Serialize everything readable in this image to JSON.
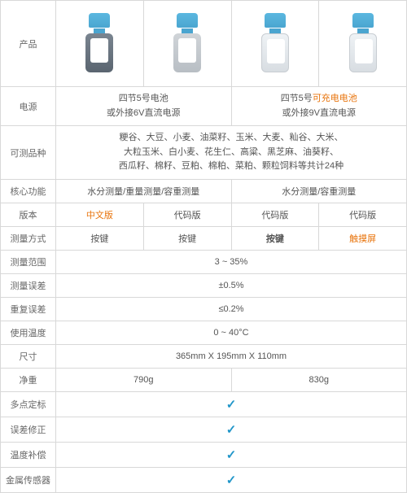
{
  "labels": {
    "product": "产品",
    "power": "电源",
    "species": "可测品种",
    "core": "核心功能",
    "version": "版本",
    "method": "测量方式",
    "range": "测量范围",
    "err": "测量误差",
    "repeat": "重复误差",
    "temp": "使用温度",
    "size": "尺寸",
    "weight": "净重",
    "multi": "多点定标",
    "errcor": "误差修正",
    "tempcomp": "温度补偿",
    "sensor": "金属传感器"
  },
  "power": {
    "left": "四节5号电池\n或外接6V直流电源",
    "right_a": "四节5号",
    "right_b": "可充电电池",
    "right_c": "\n或外接9V直流电源"
  },
  "species": "粳谷、大豆、小麦、油菜籽、玉米、大麦、籼谷、大米、\n大粒玉米、白小麦、花生仁、高粱、黑芝麻、油葵籽、\n西瓜籽、棉籽、豆粕、棉粕、菜粕、颗粒饲料等共计24种",
  "core": {
    "left": "水分测量/重量测量/容重测量",
    "right": "水分测量/容重测量"
  },
  "ver": {
    "a": "中文版",
    "b": "代码版",
    "c": "代码版",
    "d": "代码版"
  },
  "met": {
    "a": "按键",
    "b": "按键",
    "c": "按键",
    "d": "触摸屏"
  },
  "range": "3 ~ 35%",
  "err": "±0.5%",
  "repeat": "≤0.2%",
  "temp": "0 ~ 40°C",
  "size": "365mm X 195mm X 110mm",
  "wt": {
    "left": "790g",
    "right": "830g"
  },
  "chk": "✓",
  "colors": {
    "border": "#d8d8d8",
    "text": "#555",
    "highlight": "#e8740c",
    "check": "#2196c9"
  }
}
